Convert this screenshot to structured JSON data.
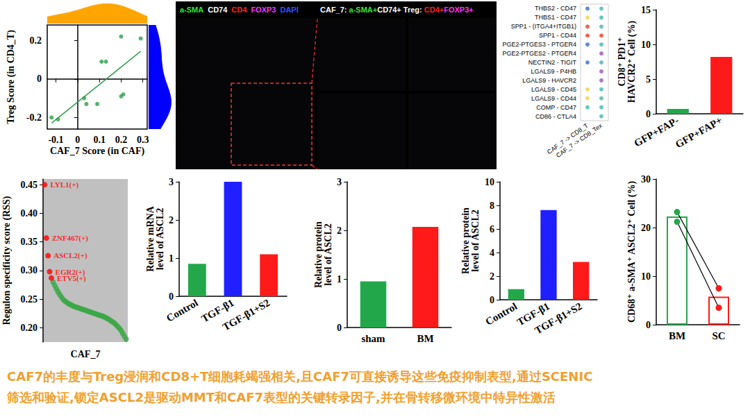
{
  "chart_data": [
    {
      "type": "scatter",
      "x_label": "CAF_7 Score (in CAF)",
      "y_label": "Treg Score (in CD4_T)",
      "x": [
        -0.12,
        -0.09,
        0.03,
        0.04,
        0.09,
        0.11,
        0.13,
        0.2,
        0.21,
        0.2,
        0.29
      ],
      "values": [
        -0.2,
        -0.21,
        -0.1,
        -0.13,
        -0.13,
        0.09,
        0.09,
        0.22,
        -0.08,
        -0.09,
        0.21
      ],
      "color": "#2e9e4a",
      "xlim": [
        -0.14,
        0.32
      ],
      "xticks": [
        -0.1,
        0,
        0.1,
        0.2,
        0.3
      ],
      "ylim": [
        -0.26,
        0.28
      ],
      "yticks": [
        -0.2,
        0,
        0.2
      ],
      "grid": false
    },
    {
      "type": "dot",
      "x": [
        "CAF_7 -> CD8_T",
        "CAF_7 -> CD8_Tex"
      ],
      "y": [
        "THBS2 - CD47",
        "THBS1 - CD47",
        "SPP1 - (ITGA4+ITGB1)",
        "SPP1 - CD44",
        "PGE2-PTGES3 - PTGER4",
        "PGE2-PTGES2 - PTGER4",
        "NECTIN2 - TIGIT",
        "LGALS9 - P4HB",
        "LGALS9 - HAVCR2",
        "LGALS9 - CD45",
        "LGALS9 - CD44",
        "COMP - CD47",
        "CD86 - CTLA4"
      ],
      "colors": [
        [
          "#3b6fc4",
          "#48b6b0"
        ],
        [
          "#f2d24b",
          "#48b6b0"
        ],
        [
          "#e8402f",
          "#48b6b0"
        ],
        [
          "#e8402f",
          "#e8402f"
        ],
        [
          "#3b6fc4",
          "#48b6b0"
        ],
        [
          null,
          "#9b59b6"
        ],
        [
          "#3b6fc4",
          "#48b6b0"
        ],
        [
          null,
          "#9b59b6"
        ],
        [
          null,
          "#9b59b6"
        ],
        [
          "#f2d24b",
          "#48b6b0"
        ],
        [
          "#f2d24b",
          "#48b6b0"
        ],
        [
          "#48b6b0",
          "#48b6b0"
        ],
        [
          null,
          "#48b6b0"
        ]
      ]
    },
    {
      "type": "bar",
      "y_label": "CD8⁺ PD1⁺ HAVCR2⁺ Cell (%)",
      "categories": [
        "GFP+FAP-",
        "GFP+FAP+"
      ],
      "values": [
        0.7,
        8.2
      ],
      "colors": [
        "#22a84a",
        "#ff1a1a"
      ],
      "ylim": [
        0,
        15
      ],
      "yticks": [
        0,
        5,
        10,
        15
      ],
      "grid": false
    },
    {
      "type": "rank",
      "x_label": "CAF_7",
      "y_label": "Regulon specificity score (RSS)",
      "highlighted": {
        "labels": [
          "LYL1(+)",
          "ZNF467(+)",
          "ASCL2(+)",
          "EGR2(+)",
          "ETV5(+)"
        ],
        "values": [
          0.45,
          0.357,
          0.326,
          0.298,
          0.287
        ],
        "color": "#ff0000"
      },
      "others": {
        "values": [
          0.28,
          0.274,
          0.268,
          0.263,
          0.258,
          0.254,
          0.25,
          0.247,
          0.245,
          0.243,
          0.241,
          0.24,
          0.238,
          0.237,
          0.236,
          0.235,
          0.234,
          0.233,
          0.232,
          0.231,
          0.23,
          0.229,
          0.228,
          0.227,
          0.226,
          0.225,
          0.224,
          0.223,
          0.222,
          0.221,
          0.22,
          0.219,
          0.217,
          0.216,
          0.214,
          0.212,
          0.21,
          0.208,
          0.205,
          0.202,
          0.199,
          0.195,
          0.19,
          0.185,
          0.18
        ],
        "color": "#3aa845"
      },
      "xlim": [
        0,
        51
      ],
      "xticks": [],
      "ylim": [
        0.175,
        0.46
      ],
      "yticks": [
        {
          "value": 0.2,
          "label": "0.20"
        },
        0.25,
        {
          "value": 0.3,
          "label": "0.30"
        },
        0.35,
        {
          "value": 0.4,
          "label": "0.40"
        },
        0.45
      ],
      "tick_labels": "y",
      "grid": false
    },
    {
      "type": "bar",
      "y_label": "Relative mRNA level of ASCL2",
      "categories": [
        "Control",
        "TGF-β1",
        "TGF-β1+S2"
      ],
      "values": [
        0.85,
        3.0,
        1.1
      ],
      "colors": [
        "#22a84a",
        "#1f1fff",
        "#ff1a1a"
      ],
      "ylim": [
        0,
        3
      ],
      "yticks": [
        0,
        1,
        2,
        3
      ],
      "grid": false
    },
    {
      "type": "bar",
      "y_label": "Relative protein level of ASCL2",
      "categories": [
        "sham",
        "BM"
      ],
      "values": [
        0.95,
        2.07
      ],
      "colors": [
        "#22a84a",
        "#ff1a1a"
      ],
      "ylim": [
        0,
        3
      ],
      "yticks": [
        0,
        1,
        2,
        3
      ],
      "grid": false
    },
    {
      "type": "bar",
      "y_label": "Relative protein level of ASCL2",
      "categories": [
        "Control",
        "TGF-β1",
        "TGF-β1+S2"
      ],
      "values": [
        0.9,
        7.6,
        3.2
      ],
      "colors": [
        "#22a84a",
        "#1f1fff",
        "#ff1a1a"
      ],
      "ylim": [
        0,
        10
      ],
      "yticks": [
        0,
        2,
        4,
        6,
        8,
        10
      ],
      "grid": false
    },
    {
      "type": "bar",
      "y_label": "CD68⁺ a-SMA⁺ ASCL2⁺ Cell (%)",
      "categories": [
        "BM",
        "SC"
      ],
      "values": [
        22.3,
        5.8
      ],
      "points": [
        [
          23.2,
          7.5
        ],
        [
          21.2,
          3.5
        ]
      ],
      "colors": [
        "#22a84a",
        "#ff1a1a"
      ],
      "ylim": [
        0,
        30
      ],
      "yticks": [
        0,
        10,
        20,
        30
      ],
      "grid": false
    }
  ],
  "image_panel": {
    "channels": [
      {
        "text": "a-SMA",
        "color": "#39e639"
      },
      {
        "text": "CD74",
        "color": "#ffffff"
      },
      {
        "text": "CD4",
        "color": "#ff2020"
      },
      {
        "text": "FOXP3",
        "color": "#ff33ff"
      },
      {
        "text": "DAPI",
        "color": "#3355ff"
      }
    ],
    "inset_title": [
      {
        "text": "CAF_7: ",
        "color": "#ffffff"
      },
      {
        "text": "a-SMA+",
        "color": "#39e639"
      },
      {
        "text": "CD74+ ",
        "color": "#ffffff"
      },
      {
        "text": "Treg: ",
        "color": "#ffffff"
      },
      {
        "text": "CD4+",
        "color": "#ff2020"
      },
      {
        "text": "FOXP3+",
        "color": "#ff33ff"
      }
    ]
  },
  "caption": [
    "CAF7的丰度与Treg浸润和CD8+T细胞耗竭强相关,且CAF7可直接诱导这些免疫抑制表型,通过SCENIC",
    "筛选和验证,锁定ASCL2是驱动MMT和CAF7表型的关键转录因子,并在骨转移微环境中特异性激活"
  ]
}
